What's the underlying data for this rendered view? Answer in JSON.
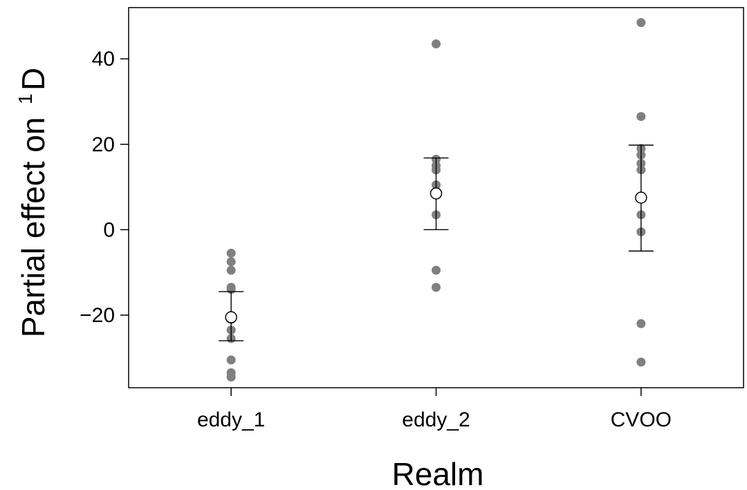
{
  "chart_data": {
    "type": "scatter",
    "xlabel": "Realm",
    "ylabel_main": "Partial effect on",
    "ylabel_sup": "1",
    "ylabel_symbol": "D",
    "ylim": [
      -37,
      52
    ],
    "yticks": [
      -20,
      0,
      20,
      40
    ],
    "ytick_labels": [
      "−20",
      "0",
      "20",
      "40"
    ],
    "categories": [
      "eddy_1",
      "eddy_2",
      "CVOO"
    ],
    "grid": false,
    "legend": "none",
    "colors": {
      "points": "#808080",
      "estimate": "#000000",
      "axis": "#000000"
    },
    "points": [
      [
        -5.5,
        -7.5,
        -9.5,
        -13.5,
        -14.0,
        -21.0,
        -23.5,
        -25.5,
        -30.5,
        -33.5,
        -34.5
      ],
      [
        43.5,
        16.5,
        15.0,
        14.0,
        10.5,
        3.5,
        -9.5,
        -13.5
      ],
      [
        48.5,
        26.5,
        19.0,
        17.5,
        15.5,
        14.0,
        3.5,
        -0.5,
        -22.0,
        -31.0
      ]
    ],
    "estimates": [
      {
        "mean": -20.5,
        "lower": -26.0,
        "upper": -14.5
      },
      {
        "mean": 8.5,
        "lower": 0.0,
        "upper": 16.8
      },
      {
        "mean": 7.5,
        "lower": -5.0,
        "upper": 19.8
      }
    ]
  }
}
